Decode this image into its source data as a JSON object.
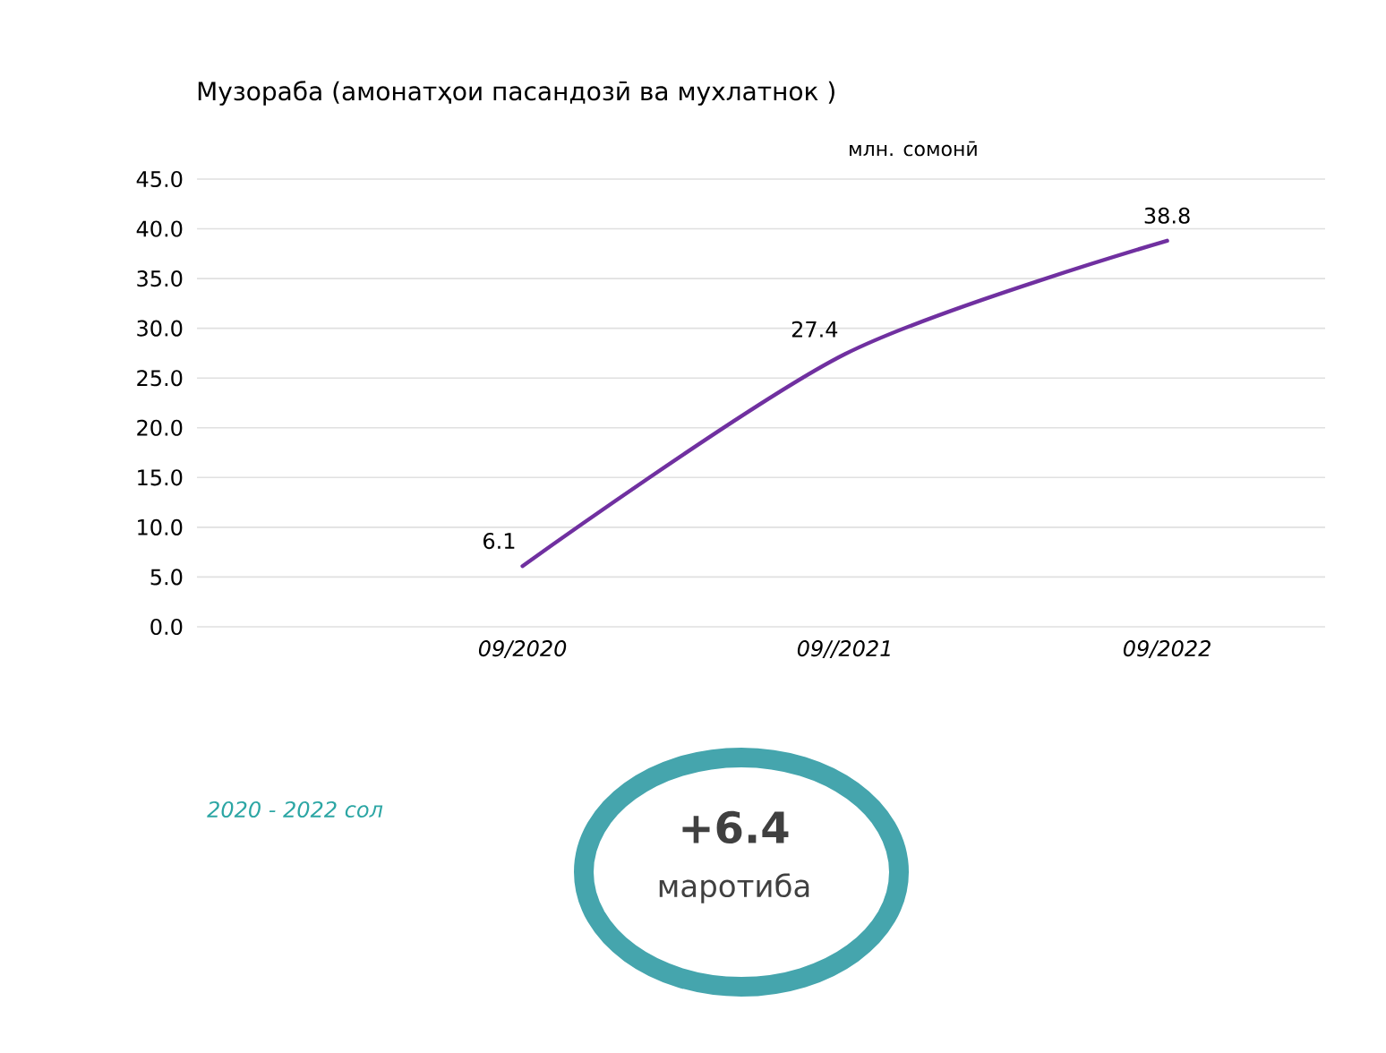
{
  "chart_data": {
    "type": "line",
    "title": "Музораба (амонатҳои пасандозӣ ва мухлатнок )",
    "subtitle": "млн. сомонӣ",
    "categories": [
      "09/2020",
      "09//2021",
      "09/2022"
    ],
    "series": [
      {
        "color": "#7030a0",
        "values": [
          6.1,
          27.4,
          38.8
        ]
      }
    ],
    "ylim": [
      0,
      45
    ],
    "yticks": [
      {
        "value": 0,
        "label": "0.0"
      },
      {
        "value": 5,
        "label": "5.0"
      },
      {
        "value": 10,
        "label": "10.0"
      },
      {
        "value": 15,
        "label": "15.0"
      },
      {
        "value": 20,
        "label": "20.0"
      },
      {
        "value": 25,
        "label": "25.0"
      },
      {
        "value": 30,
        "label": "30.0"
      },
      {
        "value": 35,
        "label": "35.0"
      },
      {
        "value": 40,
        "label": "40.0"
      },
      {
        "value": 45,
        "label": "45.0"
      }
    ],
    "grid": "y",
    "data_labels": true,
    "annotations": [
      "2020 - 2022 сол",
      "+6.4",
      "маротиба"
    ]
  }
}
